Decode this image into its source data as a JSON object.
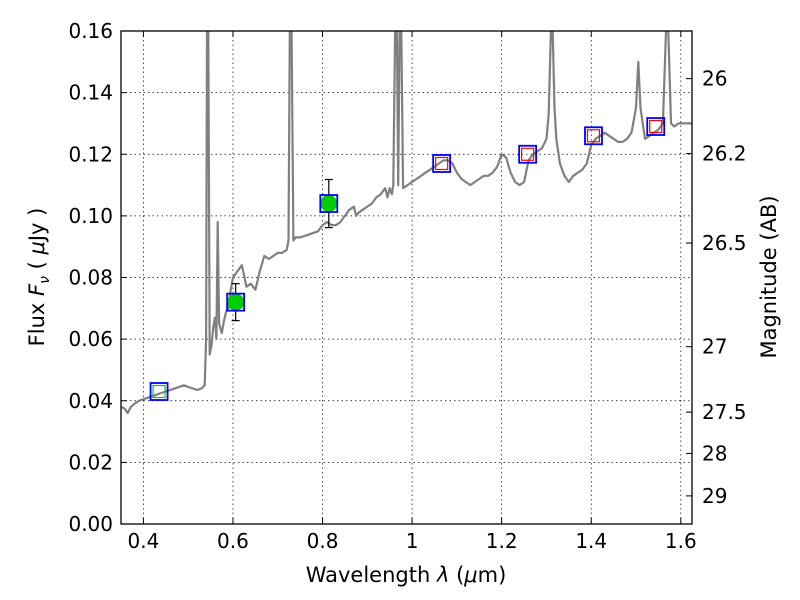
{
  "chart_data": {
    "type": "scatter",
    "title": "",
    "xlabel_prefix": "Wavelength  ",
    "xlabel_symbol": "λ",
    "xlabel_unit_open": " (",
    "xlabel_unit_mu": "μ",
    "xlabel_unit_rest": "m)",
    "ylabel_prefix": "Flux  ",
    "ylabel_symbol": "F",
    "ylabel_sub": "ν",
    "ylabel_unit_open": "  ( ",
    "ylabel_unit_mu": "μ",
    "ylabel_unit_rest": "Jy )",
    "y2label": "Magnitude (AB)",
    "xlim": [
      0.35,
      1.625
    ],
    "ylim": [
      0,
      0.16
    ],
    "grid": true,
    "x_ticks": [
      {
        "v": 0.4,
        "label": "0.4"
      },
      {
        "v": 0.6,
        "label": "0.6"
      },
      {
        "v": 0.8,
        "label": "0.8"
      },
      {
        "v": 1.0,
        "label": "1"
      },
      {
        "v": 1.2,
        "label": "1.2"
      },
      {
        "v": 1.4,
        "label": "1.4"
      },
      {
        "v": 1.6,
        "label": "1.6"
      }
    ],
    "y_ticks": [
      {
        "v": 0.0,
        "label": "0.00"
      },
      {
        "v": 0.02,
        "label": "0.02"
      },
      {
        "v": 0.04,
        "label": "0.04"
      },
      {
        "v": 0.06,
        "label": "0.06"
      },
      {
        "v": 0.08,
        "label": "0.08"
      },
      {
        "v": 0.1,
        "label": "0.10"
      },
      {
        "v": 0.12,
        "label": "0.12"
      },
      {
        "v": 0.14,
        "label": "0.14"
      },
      {
        "v": 0.16,
        "label": "0.16"
      }
    ],
    "mag_ticks": [
      {
        "v": 26,
        "label": "26"
      },
      {
        "v": 26.2,
        "label": "26.2"
      },
      {
        "v": 26.5,
        "label": "26.5"
      },
      {
        "v": 27,
        "label": "27"
      },
      {
        "v": 27.5,
        "label": "27.5"
      },
      {
        "v": 28,
        "label": "28"
      },
      {
        "v": 29,
        "label": "29"
      }
    ],
    "series": [
      {
        "kind": "model_sed",
        "color": "#808080",
        "points": [
          [
            0.35,
            0.038
          ],
          [
            0.358,
            0.0375
          ],
          [
            0.365,
            0.036
          ],
          [
            0.372,
            0.038
          ],
          [
            0.38,
            0.039
          ],
          [
            0.39,
            0.04
          ],
          [
            0.4,
            0.0405
          ],
          [
            0.41,
            0.041
          ],
          [
            0.42,
            0.0415
          ],
          [
            0.43,
            0.042
          ],
          [
            0.44,
            0.0425
          ],
          [
            0.45,
            0.043
          ],
          [
            0.46,
            0.0435
          ],
          [
            0.47,
            0.044
          ],
          [
            0.48,
            0.0445
          ],
          [
            0.49,
            0.045
          ],
          [
            0.5,
            0.0445
          ],
          [
            0.51,
            0.044
          ],
          [
            0.52,
            0.0435
          ],
          [
            0.53,
            0.044
          ],
          [
            0.537,
            0.045
          ],
          [
            0.54,
            0.06
          ],
          [
            0.542,
            0.16
          ],
          [
            0.545,
            0.16
          ],
          [
            0.548,
            0.055
          ],
          [
            0.552,
            0.058
          ],
          [
            0.556,
            0.064
          ],
          [
            0.56,
            0.067
          ],
          [
            0.563,
            0.06
          ],
          [
            0.566,
            0.098
          ],
          [
            0.569,
            0.065
          ],
          [
            0.575,
            0.062
          ],
          [
            0.58,
            0.066
          ],
          [
            0.585,
            0.069
          ],
          [
            0.59,
            0.07
          ],
          [
            0.595,
            0.076
          ],
          [
            0.6,
            0.08
          ],
          [
            0.61,
            0.082
          ],
          [
            0.62,
            0.084
          ],
          [
            0.63,
            0.077
          ],
          [
            0.64,
            0.078
          ],
          [
            0.65,
            0.076
          ],
          [
            0.66,
            0.082
          ],
          [
            0.67,
            0.087
          ],
          [
            0.68,
            0.086
          ],
          [
            0.69,
            0.087
          ],
          [
            0.7,
            0.088
          ],
          [
            0.71,
            0.088
          ],
          [
            0.72,
            0.089
          ],
          [
            0.724,
            0.092
          ],
          [
            0.727,
            0.16
          ],
          [
            0.731,
            0.16
          ],
          [
            0.735,
            0.092
          ],
          [
            0.74,
            0.093
          ],
          [
            0.75,
            0.093
          ],
          [
            0.76,
            0.0935
          ],
          [
            0.77,
            0.094
          ],
          [
            0.78,
            0.0945
          ],
          [
            0.79,
            0.095
          ],
          [
            0.8,
            0.097
          ],
          [
            0.81,
            0.098
          ],
          [
            0.82,
            0.097
          ],
          [
            0.83,
            0.097
          ],
          [
            0.84,
            0.098
          ],
          [
            0.85,
            0.1
          ],
          [
            0.86,
            0.102
          ],
          [
            0.87,
            0.103
          ],
          [
            0.875,
            0.1
          ],
          [
            0.88,
            0.101
          ],
          [
            0.89,
            0.102
          ],
          [
            0.9,
            0.103
          ],
          [
            0.91,
            0.104
          ],
          [
            0.92,
            0.106
          ],
          [
            0.93,
            0.107
          ],
          [
            0.94,
            0.109
          ],
          [
            0.945,
            0.106
          ],
          [
            0.95,
            0.109
          ],
          [
            0.955,
            0.107
          ],
          [
            0.958,
            0.11
          ],
          [
            0.962,
            0.16
          ],
          [
            0.966,
            0.16
          ],
          [
            0.969,
            0.11
          ],
          [
            0.972,
            0.16
          ],
          [
            0.976,
            0.16
          ],
          [
            0.98,
            0.109
          ],
          [
            0.99,
            0.11
          ],
          [
            1.0,
            0.111
          ],
          [
            1.01,
            0.112
          ],
          [
            1.02,
            0.113
          ],
          [
            1.03,
            0.114
          ],
          [
            1.04,
            0.115
          ],
          [
            1.05,
            0.116
          ],
          [
            1.06,
            0.117
          ],
          [
            1.07,
            0.118
          ],
          [
            1.08,
            0.118
          ],
          [
            1.09,
            0.117
          ],
          [
            1.1,
            0.114
          ],
          [
            1.11,
            0.112
          ],
          [
            1.12,
            0.111
          ],
          [
            1.13,
            0.11
          ],
          [
            1.14,
            0.111
          ],
          [
            1.15,
            0.112
          ],
          [
            1.16,
            0.113
          ],
          [
            1.17,
            0.113
          ],
          [
            1.18,
            0.114
          ],
          [
            1.19,
            0.116
          ],
          [
            1.2,
            0.12
          ],
          [
            1.21,
            0.119
          ],
          [
            1.22,
            0.114
          ],
          [
            1.23,
            0.111
          ],
          [
            1.24,
            0.11
          ],
          [
            1.25,
            0.111
          ],
          [
            1.26,
            0.118
          ],
          [
            1.27,
            0.12
          ],
          [
            1.28,
            0.121
          ],
          [
            1.29,
            0.122
          ],
          [
            1.3,
            0.125
          ],
          [
            1.305,
            0.133
          ],
          [
            1.31,
            0.16
          ],
          [
            1.314,
            0.16
          ],
          [
            1.318,
            0.135
          ],
          [
            1.322,
            0.125
          ],
          [
            1.33,
            0.117
          ],
          [
            1.34,
            0.113
          ],
          [
            1.35,
            0.111
          ],
          [
            1.36,
            0.113
          ],
          [
            1.37,
            0.114
          ],
          [
            1.38,
            0.115
          ],
          [
            1.39,
            0.117
          ],
          [
            1.4,
            0.123
          ],
          [
            1.41,
            0.125
          ],
          [
            1.42,
            0.126
          ],
          [
            1.43,
            0.127
          ],
          [
            1.44,
            0.126
          ],
          [
            1.45,
            0.125
          ],
          [
            1.46,
            0.124
          ],
          [
            1.47,
            0.124
          ],
          [
            1.48,
            0.125
          ],
          [
            1.49,
            0.127
          ],
          [
            1.5,
            0.135
          ],
          [
            1.505,
            0.15
          ],
          [
            1.51,
            0.135
          ],
          [
            1.52,
            0.125
          ],
          [
            1.53,
            0.126
          ],
          [
            1.54,
            0.127
          ],
          [
            1.55,
            0.128
          ],
          [
            1.56,
            0.13
          ],
          [
            1.567,
            0.16
          ],
          [
            1.572,
            0.16
          ],
          [
            1.578,
            0.13
          ],
          [
            1.585,
            0.129
          ],
          [
            1.595,
            0.13
          ],
          [
            1.605,
            0.13
          ],
          [
            1.615,
            0.13
          ],
          [
            1.625,
            0.13
          ]
        ]
      },
      {
        "kind": "observed",
        "color": "#00cc00",
        "points": [
          {
            "x": 0.606,
            "y": 0.072,
            "err": 0.006
          },
          {
            "x": 0.814,
            "y": 0.104,
            "err": 0.0078
          }
        ]
      },
      {
        "kind": "upper_limit",
        "color": "#00cc00",
        "points": [
          {
            "x": 0.435,
            "y": 0.043
          }
        ]
      },
      {
        "kind": "predicted",
        "color": "#ff0000",
        "points": [
          {
            "x": 1.066,
            "y": 0.117
          },
          {
            "x": 1.258,
            "y": 0.12
          },
          {
            "x": 1.405,
            "y": 0.126
          },
          {
            "x": 1.544,
            "y": 0.129
          }
        ]
      },
      {
        "kind": "model_synthetic",
        "color": "#0000ff",
        "points": [
          {
            "x": 0.435,
            "y": 0.043
          },
          {
            "x": 0.606,
            "y": 0.072
          },
          {
            "x": 0.814,
            "y": 0.104
          },
          {
            "x": 1.066,
            "y": 0.117
          },
          {
            "x": 1.258,
            "y": 0.12
          },
          {
            "x": 1.405,
            "y": 0.126
          },
          {
            "x": 1.544,
            "y": 0.129
          }
        ]
      }
    ]
  }
}
